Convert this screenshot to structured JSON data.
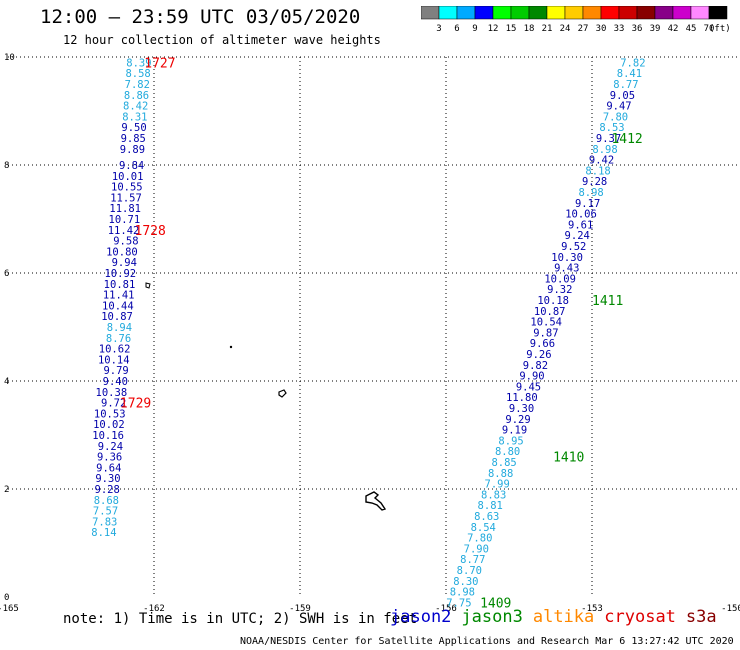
{
  "header": {
    "title": "12:00 – 23:59 UTC 03/05/2020",
    "subtitle": "12 hour collection of altimeter wave heights"
  },
  "colorbar": {
    "unit": "(ft)",
    "bins": [
      {
        "label": "3",
        "color": "#808080"
      },
      {
        "label": "6",
        "color": "#00ffff"
      },
      {
        "label": "9",
        "color": "#00aaff"
      },
      {
        "label": "12",
        "color": "#0000ff"
      },
      {
        "label": "15",
        "color": "#00ff00"
      },
      {
        "label": "18",
        "color": "#00cc00"
      },
      {
        "label": "21",
        "color": "#008800"
      },
      {
        "label": "24",
        "color": "#ffff00"
      },
      {
        "label": "27",
        "color": "#ffcc00"
      },
      {
        "label": "30",
        "color": "#ff8800"
      },
      {
        "label": "33",
        "color": "#ff0000"
      },
      {
        "label": "36",
        "color": "#cc0000"
      },
      {
        "label": "39",
        "color": "#880000"
      },
      {
        "label": "42",
        "color": "#880088"
      },
      {
        "label": "45",
        "color": "#cc00cc"
      },
      {
        "label": "70",
        "color": "#ff88ff"
      },
      {
        "label": "",
        "color": "#000000"
      }
    ]
  },
  "footer": {
    "note": "note: 1) Time is in UTC; 2) SWH is in feet",
    "credit": "NOAA/NESDIS Center for Satellite Applications and Research   Mar  6 13:27:42 UTC 2020",
    "legend": [
      {
        "name": "jason2",
        "color": "#0000cc"
      },
      {
        "name": "jason3",
        "color": "#008800"
      },
      {
        "name": "altika",
        "color": "#ff8800"
      },
      {
        "name": "cryosat",
        "color": "#dd0000"
      },
      {
        "name": "s3a",
        "color": "#880000"
      }
    ]
  },
  "chart_data": {
    "type": "scatter",
    "xlim": [
      -165,
      -150
    ],
    "ylim": [
      0,
      10
    ],
    "x_ticks": [
      "-165",
      "-162",
      "-159",
      "-156",
      "-153",
      "-150"
    ],
    "y_ticks": [
      "0",
      "2",
      "4",
      "6",
      "8",
      "10"
    ],
    "colors": {
      "light": "#22aadd",
      "dark": "#0000aa",
      "time_west": "#ee0000",
      "time_east": "#008800"
    },
    "tracks": [
      {
        "satellite": "cryosat",
        "points": [
          {
            "lon": -162.5,
            "lat": 9.9,
            "v": "8.39",
            "c": "light"
          },
          {
            "lon": -162.5,
            "lat": 9.7,
            "v": "8.58",
            "c": "light"
          },
          {
            "lon": -162.5,
            "lat": 9.5,
            "v": "7.82",
            "c": "light"
          },
          {
            "lon": -162.5,
            "lat": 9.3,
            "v": "8.86",
            "c": "light"
          },
          {
            "lon": -162.5,
            "lat": 9.1,
            "v": "8.42",
            "c": "light"
          },
          {
            "lon": -162.5,
            "lat": 8.9,
            "v": "8.31",
            "c": "light"
          },
          {
            "lon": -162.5,
            "lat": 8.7,
            "v": "9.50",
            "c": "dark"
          },
          {
            "lon": -162.5,
            "lat": 8.5,
            "v": "9.85",
            "c": "dark"
          },
          {
            "lon": -162.5,
            "lat": 8.3,
            "v": "9.89",
            "c": "dark"
          },
          {
            "lon": -162.5,
            "lat": 8.0,
            "v": "9.84",
            "c": "dark"
          },
          {
            "lon": -162.5,
            "lat": 7.8,
            "v": "10.01",
            "c": "dark"
          },
          {
            "lon": -162.5,
            "lat": 7.6,
            "v": "10.55",
            "c": "dark"
          },
          {
            "lon": -162.5,
            "lat": 7.4,
            "v": "11.57",
            "c": "dark"
          },
          {
            "lon": -162.5,
            "lat": 7.2,
            "v": "11.81",
            "c": "dark"
          },
          {
            "lon": -162.5,
            "lat": 7.0,
            "v": "10.71",
            "c": "dark"
          },
          {
            "lon": -162.5,
            "lat": 6.8,
            "v": "11.42",
            "c": "dark"
          },
          {
            "lon": -162.5,
            "lat": 6.6,
            "v": "9.58",
            "c": "dark"
          },
          {
            "lon": -162.5,
            "lat": 6.4,
            "v": "10.80",
            "c": "dark"
          },
          {
            "lon": -162.5,
            "lat": 6.2,
            "v": "9.94",
            "c": "dark"
          },
          {
            "lon": -162.5,
            "lat": 6.0,
            "v": "10.92",
            "c": "dark"
          },
          {
            "lon": -162.5,
            "lat": 5.8,
            "v": "10.81",
            "c": "dark"
          },
          {
            "lon": -162.5,
            "lat": 5.6,
            "v": "11.41",
            "c": "dark"
          },
          {
            "lon": -162.5,
            "lat": 5.4,
            "v": "10.44",
            "c": "dark"
          },
          {
            "lon": -162.5,
            "lat": 5.2,
            "v": "10.87",
            "c": "dark"
          },
          {
            "lon": -162.5,
            "lat": 5.0,
            "v": "8.94",
            "c": "light"
          },
          {
            "lon": -162.5,
            "lat": 4.8,
            "v": "8.76",
            "c": "light"
          },
          {
            "lon": -162.5,
            "lat": 4.6,
            "v": "10.62",
            "c": "dark"
          },
          {
            "lon": -162.5,
            "lat": 4.4,
            "v": "10.14",
            "c": "dark"
          },
          {
            "lon": -162.5,
            "lat": 4.2,
            "v": "9.79",
            "c": "dark"
          },
          {
            "lon": -162.5,
            "lat": 4.0,
            "v": "9.40",
            "c": "dark"
          },
          {
            "lon": -162.5,
            "lat": 3.8,
            "v": "10.38",
            "c": "dark"
          },
          {
            "lon": -162.5,
            "lat": 3.6,
            "v": "9.72",
            "c": "dark"
          },
          {
            "lon": -162.5,
            "lat": 3.4,
            "v": "10.53",
            "c": "dark"
          },
          {
            "lon": -162.5,
            "lat": 3.2,
            "v": "10.02",
            "c": "dark"
          },
          {
            "lon": -162.5,
            "lat": 3.0,
            "v": "10.16",
            "c": "dark"
          },
          {
            "lon": -162.5,
            "lat": 2.8,
            "v": "9.24",
            "c": "dark"
          },
          {
            "lon": -162.5,
            "lat": 2.6,
            "v": "9.36",
            "c": "dark"
          },
          {
            "lon": -162.5,
            "lat": 2.4,
            "v": "9.64",
            "c": "dark"
          },
          {
            "lon": -162.5,
            "lat": 2.2,
            "v": "9.30",
            "c": "dark"
          },
          {
            "lon": -162.5,
            "lat": 2.0,
            "v": "9.28",
            "c": "dark"
          },
          {
            "lon": -162.5,
            "lat": 1.8,
            "v": "8.68",
            "c": "light"
          },
          {
            "lon": -162.5,
            "lat": 1.6,
            "v": "7.57",
            "c": "light"
          },
          {
            "lon": -162.5,
            "lat": 1.4,
            "v": "7.83",
            "c": "light"
          },
          {
            "lon": -162.5,
            "lat": 1.2,
            "v": "8.14",
            "c": "light"
          }
        ],
        "times": [
          {
            "lon": -162.2,
            "lat": 9.9,
            "t": "1727"
          },
          {
            "lon": -162.4,
            "lat": 6.8,
            "t": "1728"
          },
          {
            "lon": -162.7,
            "lat": 3.6,
            "t": "1729"
          }
        ]
      },
      {
        "satellite": "jason3",
        "points": [
          {
            "lon": -153.0,
            "lat": 9.9,
            "v": "7.82",
            "c": "light"
          },
          {
            "lon": -153.0,
            "lat": 9.7,
            "v": "8.41",
            "c": "light"
          },
          {
            "lon": -153.0,
            "lat": 9.5,
            "v": "8.77",
            "c": "light"
          },
          {
            "lon": -153.0,
            "lat": 9.3,
            "v": "9.05",
            "c": "dark"
          },
          {
            "lon": -153.0,
            "lat": 9.1,
            "v": "9.47",
            "c": "dark"
          },
          {
            "lon": -153.0,
            "lat": 8.9,
            "v": "7.80",
            "c": "light"
          },
          {
            "lon": -153.0,
            "lat": 8.7,
            "v": "8.53",
            "c": "light"
          },
          {
            "lon": -153.0,
            "lat": 8.5,
            "v": "9.37",
            "c": "dark"
          },
          {
            "lon": -153.0,
            "lat": 8.3,
            "v": "8.98",
            "c": "light"
          },
          {
            "lon": -153.0,
            "lat": 8.1,
            "v": "9.42",
            "c": "dark"
          },
          {
            "lon": -153.0,
            "lat": 7.9,
            "v": "8.18",
            "c": "light"
          },
          {
            "lon": -153.0,
            "lat": 7.7,
            "v": "9.28",
            "c": "dark"
          },
          {
            "lon": -153.0,
            "lat": 7.5,
            "v": "8.98",
            "c": "light"
          },
          {
            "lon": -153.0,
            "lat": 7.3,
            "v": "9.17",
            "c": "dark"
          },
          {
            "lon": -153.0,
            "lat": 7.1,
            "v": "10.06",
            "c": "dark"
          },
          {
            "lon": -153.0,
            "lat": 6.9,
            "v": "9.61",
            "c": "dark"
          },
          {
            "lon": -153.0,
            "lat": 6.7,
            "v": "9.24",
            "c": "dark"
          },
          {
            "lon": -153.0,
            "lat": 6.5,
            "v": "9.52",
            "c": "dark"
          },
          {
            "lon": -153.0,
            "lat": 6.3,
            "v": "10.30",
            "c": "dark"
          },
          {
            "lon": -153.0,
            "lat": 6.1,
            "v": "9.43",
            "c": "dark"
          },
          {
            "lon": -153.0,
            "lat": 5.9,
            "v": "10.09",
            "c": "dark"
          },
          {
            "lon": -153.0,
            "lat": 5.7,
            "v": "9.32",
            "c": "dark"
          },
          {
            "lon": -153.0,
            "lat": 5.5,
            "v": "10.18",
            "c": "dark"
          },
          {
            "lon": -153.0,
            "lat": 5.3,
            "v": "10.87",
            "c": "dark"
          },
          {
            "lon": -153.0,
            "lat": 5.1,
            "v": "10.54",
            "c": "dark"
          },
          {
            "lon": -153.0,
            "lat": 4.9,
            "v": "9.87",
            "c": "dark"
          },
          {
            "lon": -153.0,
            "lat": 4.7,
            "v": "9.66",
            "c": "dark"
          },
          {
            "lon": -153.0,
            "lat": 4.5,
            "v": "9.26",
            "c": "dark"
          },
          {
            "lon": -153.0,
            "lat": 4.3,
            "v": "9.82",
            "c": "dark"
          },
          {
            "lon": -153.0,
            "lat": 4.1,
            "v": "9.90",
            "c": "dark"
          },
          {
            "lon": -153.0,
            "lat": 3.9,
            "v": "9.45",
            "c": "dark"
          },
          {
            "lon": -153.0,
            "lat": 3.7,
            "v": "11.80",
            "c": "dark"
          },
          {
            "lon": -153.0,
            "lat": 3.5,
            "v": "9.30",
            "c": "dark"
          },
          {
            "lon": -153.0,
            "lat": 3.3,
            "v": "9.29",
            "c": "dark"
          },
          {
            "lon": -153.0,
            "lat": 3.1,
            "v": "9.19",
            "c": "dark"
          },
          {
            "lon": -153.0,
            "lat": 2.9,
            "v": "8.95",
            "c": "light"
          },
          {
            "lon": -153.0,
            "lat": 2.7,
            "v": "8.80",
            "c": "light"
          },
          {
            "lon": -153.0,
            "lat": 2.5,
            "v": "8.85",
            "c": "light"
          },
          {
            "lon": -153.0,
            "lat": 2.3,
            "v": "8.88",
            "c": "light"
          },
          {
            "lon": -153.0,
            "lat": 2.1,
            "v": "7.99",
            "c": "light"
          },
          {
            "lon": -153.0,
            "lat": 1.9,
            "v": "8.83",
            "c": "light"
          },
          {
            "lon": -153.0,
            "lat": 1.7,
            "v": "8.81",
            "c": "light"
          },
          {
            "lon": -153.0,
            "lat": 1.5,
            "v": "8.63",
            "c": "light"
          },
          {
            "lon": -153.0,
            "lat": 1.3,
            "v": "8.54",
            "c": "light"
          },
          {
            "lon": -153.0,
            "lat": 1.1,
            "v": "7.80",
            "c": "light"
          },
          {
            "lon": -153.0,
            "lat": 0.9,
            "v": "7.90",
            "c": "light"
          },
          {
            "lon": -153.0,
            "lat": 0.7,
            "v": "8.77",
            "c": "light"
          },
          {
            "lon": -153.0,
            "lat": 0.5,
            "v": "8.70",
            "c": "light"
          },
          {
            "lon": -153.0,
            "lat": 0.3,
            "v": "8.30",
            "c": "light"
          },
          {
            "lon": -153.0,
            "lat": 0.1,
            "v": "8.98",
            "c": "light"
          },
          {
            "lon": -153.0,
            "lat": -0.1,
            "v": "7.75",
            "c": "light"
          }
        ],
        "times": [
          {
            "lon": -152.6,
            "lat": 8.5,
            "t": "1412"
          },
          {
            "lon": -153.0,
            "lat": 5.5,
            "t": "1411"
          },
          {
            "lon": -153.8,
            "lat": 2.6,
            "t": "1410"
          },
          {
            "lon": -155.3,
            "lat": -0.1,
            "t": "1409"
          }
        ]
      }
    ]
  }
}
